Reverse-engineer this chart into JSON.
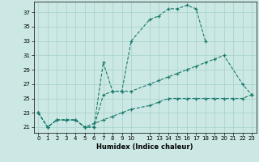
{
  "title": "",
  "xlabel": "Humidex (Indice chaleur)",
  "bg_color": "#cce8e4",
  "grid_color": "#aad4cf",
  "line_color": "#1a7a6e",
  "yticks": [
    21,
    23,
    25,
    27,
    29,
    31,
    33,
    35,
    37
  ],
  "xticks": [
    0,
    1,
    2,
    3,
    4,
    5,
    6,
    7,
    8,
    9,
    10,
    12,
    13,
    14,
    15,
    16,
    17,
    18,
    19,
    20,
    21,
    22,
    23
  ],
  "xlim": [
    -0.5,
    23.5
  ],
  "ylim": [
    20.2,
    38.5
  ],
  "series1_x": [
    0,
    1,
    2,
    3,
    4,
    5,
    6,
    7,
    8,
    9,
    10,
    12,
    13,
    14,
    15,
    16,
    17,
    18
  ],
  "series1_y": [
    23,
    21,
    22,
    22,
    22,
    21,
    21,
    30,
    26,
    26,
    33,
    36,
    36.5,
    37.5,
    37.5,
    38,
    37.5,
    33
  ],
  "series2_x": [
    0,
    1,
    2,
    3,
    4,
    5,
    6,
    7,
    8,
    9,
    10,
    12,
    13,
    14,
    15,
    16,
    17,
    18,
    19,
    20,
    22,
    23
  ],
  "series2_y": [
    23,
    21,
    22,
    22,
    22,
    21,
    21,
    25.5,
    26,
    26,
    26,
    27,
    27.5,
    28,
    28.5,
    29,
    29.5,
    30,
    30.5,
    31,
    27,
    25.5
  ],
  "series3_x": [
    0,
    1,
    2,
    3,
    4,
    5,
    6,
    7,
    8,
    9,
    10,
    12,
    13,
    14,
    15,
    16,
    17,
    18,
    19,
    20,
    21,
    22,
    23
  ],
  "series3_y": [
    23,
    21,
    22,
    22,
    22,
    21,
    21.5,
    22,
    22.5,
    23,
    23.5,
    24,
    24.5,
    25,
    25,
    25,
    25,
    25,
    25,
    25,
    25,
    25,
    25.5
  ]
}
